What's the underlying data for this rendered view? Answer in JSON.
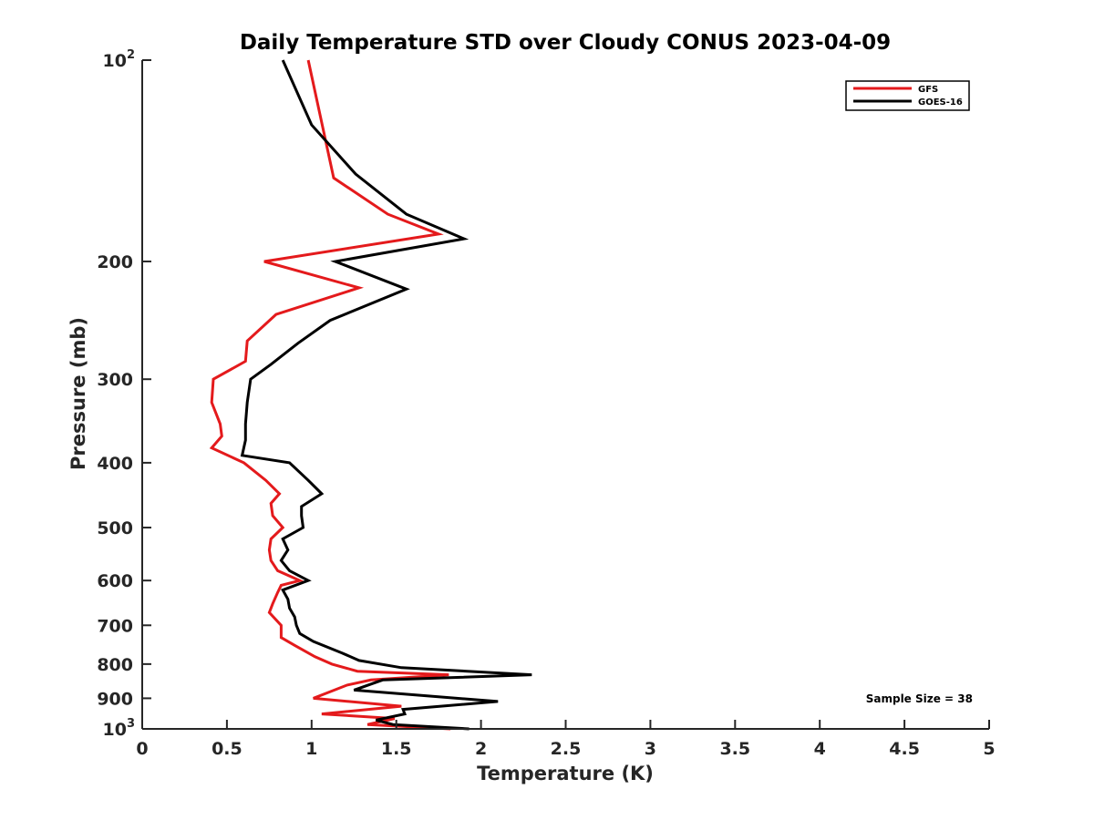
{
  "chart_data": {
    "type": "line",
    "title": "Daily Temperature STD over Cloudy CONUS 2023-04-09",
    "xlabel": "Temperature (K)",
    "ylabel": "Pressure (mb)",
    "xlim": [
      0,
      5
    ],
    "ylim": [
      100,
      1000
    ],
    "y_scale": "log",
    "y_reversed": true,
    "x_ticks": [
      {
        "value": 0,
        "label": "0"
      },
      {
        "value": 0.5,
        "label": "0.5"
      },
      {
        "value": 1,
        "label": "1"
      },
      {
        "value": 1.5,
        "label": "1.5"
      },
      {
        "value": 2,
        "label": "2"
      },
      {
        "value": 2.5,
        "label": "2.5"
      },
      {
        "value": 3,
        "label": "3"
      },
      {
        "value": 3.5,
        "label": "3.5"
      },
      {
        "value": 4,
        "label": "4"
      },
      {
        "value": 4.5,
        "label": "4.5"
      },
      {
        "value": 5,
        "label": "5"
      }
    ],
    "y_ticks": [
      {
        "value": 100,
        "label": "10",
        "sup": "2"
      },
      {
        "value": 200,
        "label": "200"
      },
      {
        "value": 300,
        "label": "300"
      },
      {
        "value": 400,
        "label": "400"
      },
      {
        "value": 500,
        "label": "500"
      },
      {
        "value": 600,
        "label": "600"
      },
      {
        "value": 700,
        "label": "700"
      },
      {
        "value": 800,
        "label": "800"
      },
      {
        "value": 900,
        "label": "900"
      },
      {
        "value": 1000,
        "label": "10",
        "sup": "3"
      }
    ],
    "grid": false,
    "legend_position": "top-right",
    "annotation": "Sample Size = 38",
    "series": [
      {
        "name": "GFS",
        "color": "#e41a1c",
        "points": [
          [
            0.98,
            100
          ],
          [
            1.13,
            150
          ],
          [
            1.45,
            170
          ],
          [
            1.75,
            182
          ],
          [
            0.72,
            200
          ],
          [
            1.28,
            219
          ],
          [
            0.79,
            240
          ],
          [
            0.62,
            263
          ],
          [
            0.61,
            282
          ],
          [
            0.42,
            300
          ],
          [
            0.41,
            325
          ],
          [
            0.46,
            350
          ],
          [
            0.47,
            365
          ],
          [
            0.41,
            380
          ],
          [
            0.6,
            400
          ],
          [
            0.73,
            425
          ],
          [
            0.81,
            445
          ],
          [
            0.76,
            460
          ],
          [
            0.77,
            480
          ],
          [
            0.83,
            500
          ],
          [
            0.76,
            520
          ],
          [
            0.75,
            540
          ],
          [
            0.76,
            560
          ],
          [
            0.8,
            580
          ],
          [
            0.93,
            600
          ],
          [
            0.82,
            610
          ],
          [
            0.8,
            625
          ],
          [
            0.77,
            650
          ],
          [
            0.75,
            670
          ],
          [
            0.82,
            700
          ],
          [
            0.82,
            730
          ],
          [
            0.9,
            750
          ],
          [
            1.02,
            780
          ],
          [
            1.12,
            800
          ],
          [
            1.27,
            820
          ],
          [
            1.81,
            830
          ],
          [
            1.35,
            845
          ],
          [
            1.21,
            860
          ],
          [
            1.01,
            900
          ],
          [
            1.53,
            925
          ],
          [
            1.06,
            950
          ],
          [
            1.49,
            965
          ],
          [
            1.33,
            985
          ],
          [
            1.82,
            1000
          ]
        ]
      },
      {
        "name": "GOES-16",
        "color": "#000000",
        "points": [
          [
            0.83,
            100
          ],
          [
            1.0,
            125
          ],
          [
            1.26,
            148
          ],
          [
            1.56,
            170
          ],
          [
            1.9,
            185
          ],
          [
            1.14,
            200
          ],
          [
            1.56,
            220
          ],
          [
            1.11,
            245
          ],
          [
            0.92,
            265
          ],
          [
            0.76,
            285
          ],
          [
            0.64,
            300
          ],
          [
            0.62,
            325
          ],
          [
            0.61,
            350
          ],
          [
            0.61,
            370
          ],
          [
            0.59,
            390
          ],
          [
            0.87,
            400
          ],
          [
            0.98,
            425
          ],
          [
            1.06,
            445
          ],
          [
            0.94,
            465
          ],
          [
            0.94,
            480
          ],
          [
            0.95,
            500
          ],
          [
            0.83,
            520
          ],
          [
            0.86,
            540
          ],
          [
            0.82,
            560
          ],
          [
            0.87,
            580
          ],
          [
            0.98,
            600
          ],
          [
            0.83,
            620
          ],
          [
            0.86,
            640
          ],
          [
            0.87,
            660
          ],
          [
            0.9,
            680
          ],
          [
            0.91,
            700
          ],
          [
            0.93,
            720
          ],
          [
            1.01,
            740
          ],
          [
            1.18,
            770
          ],
          [
            1.28,
            790
          ],
          [
            1.53,
            810
          ],
          [
            2.3,
            830
          ],
          [
            1.42,
            845
          ],
          [
            1.25,
            875
          ],
          [
            2.1,
            910
          ],
          [
            1.54,
            935
          ],
          [
            1.55,
            950
          ],
          [
            1.38,
            970
          ],
          [
            1.48,
            985
          ],
          [
            1.93,
            1000
          ]
        ]
      }
    ]
  }
}
